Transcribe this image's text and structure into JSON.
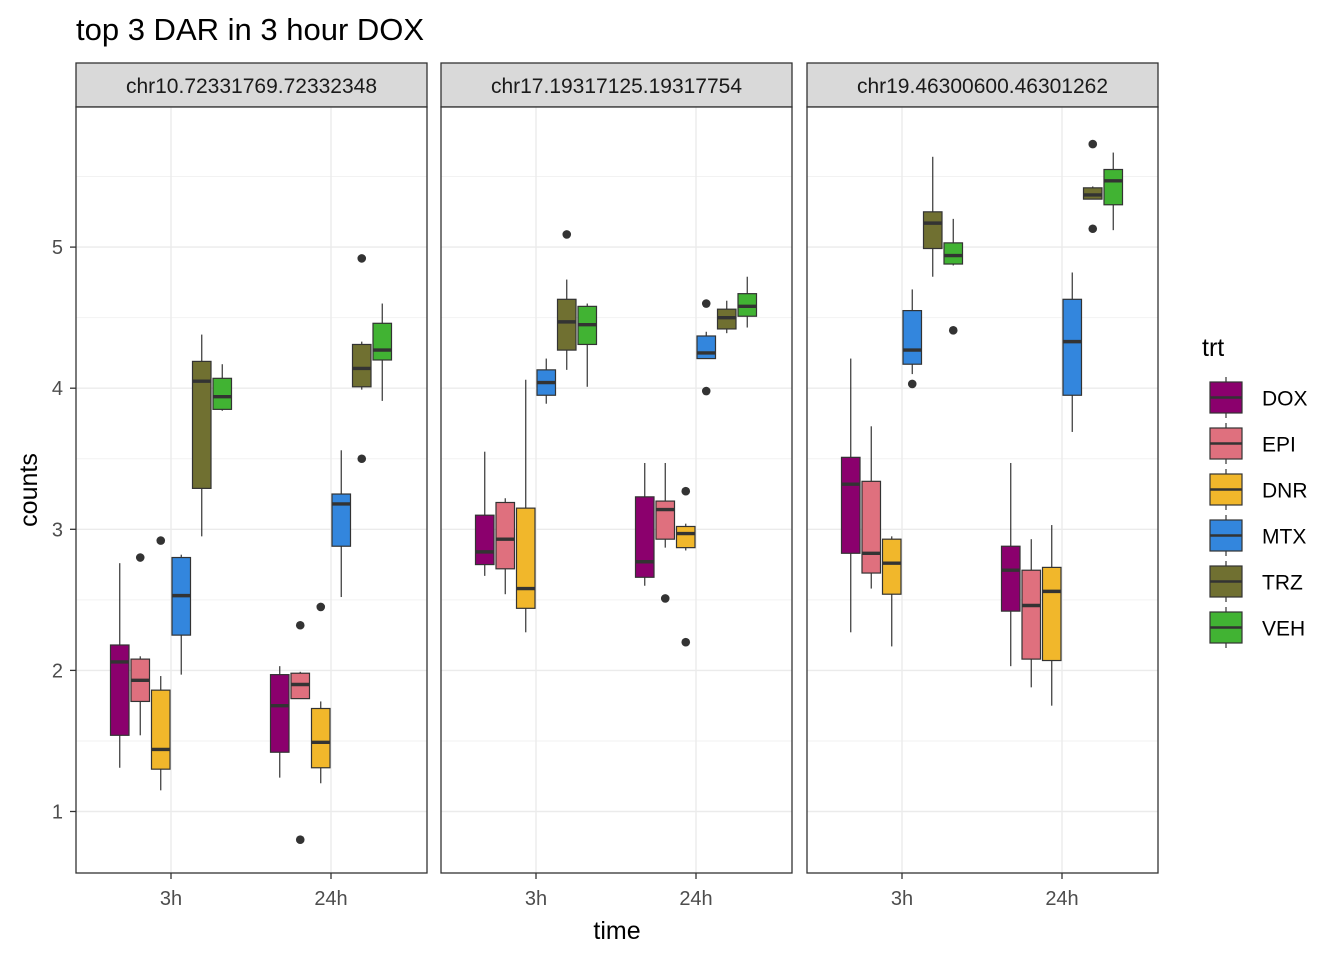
{
  "chart_data": {
    "type": "boxplot",
    "title": "top 3 DAR in 3 hour DOX",
    "xlabel": "time",
    "ylabel": "counts",
    "x_categories": [
      "3h",
      "24h"
    ],
    "y_ticks": [
      1,
      2,
      3,
      4,
      5
    ],
    "ylim": [
      0.55,
      6.0
    ],
    "grid": true,
    "legend": {
      "title": "trt",
      "placement": "right",
      "entries": [
        {
          "name": "DOX",
          "color": "#8B006D"
        },
        {
          "name": "EPI",
          "color": "#DF707E"
        },
        {
          "name": "DNR",
          "color": "#F1B72B"
        },
        {
          "name": "MTX",
          "color": "#3386DD"
        },
        {
          "name": "TRZ",
          "color": "#707031"
        },
        {
          "name": "VEH",
          "color": "#41B333"
        }
      ]
    },
    "panels": [
      {
        "label": "chr10.72331769.72332348",
        "groups": [
          {
            "time": "3h",
            "boxes": [
              {
                "trt": "DOX",
                "min": 1.31,
                "q1": 1.54,
                "median": 2.06,
                "q3": 2.18,
                "max": 2.76,
                "outliers": []
              },
              {
                "trt": "EPI",
                "min": 1.54,
                "q1": 1.78,
                "median": 1.93,
                "q3": 2.08,
                "max": 2.1,
                "outliers": [
                  2.8
                ]
              },
              {
                "trt": "DNR",
                "min": 1.15,
                "q1": 1.3,
                "median": 1.44,
                "q3": 1.86,
                "max": 1.96,
                "outliers": [
                  2.92
                ]
              },
              {
                "trt": "MTX",
                "min": 1.97,
                "q1": 2.25,
                "median": 2.53,
                "q3": 2.8,
                "max": 2.82,
                "outliers": []
              },
              {
                "trt": "TRZ",
                "min": 2.95,
                "q1": 3.29,
                "median": 4.05,
                "q3": 4.19,
                "max": 4.38,
                "outliers": []
              },
              {
                "trt": "VEH",
                "min": 3.84,
                "q1": 3.85,
                "median": 3.94,
                "q3": 4.07,
                "max": 4.17,
                "outliers": []
              }
            ]
          },
          {
            "time": "24h",
            "boxes": [
              {
                "trt": "DOX",
                "min": 1.24,
                "q1": 1.42,
                "median": 1.75,
                "q3": 1.97,
                "max": 2.03,
                "outliers": []
              },
              {
                "trt": "EPI",
                "min": 1.8,
                "q1": 1.8,
                "median": 1.9,
                "q3": 1.98,
                "max": 1.99,
                "outliers": [
                  2.32,
                  0.8
                ]
              },
              {
                "trt": "DNR",
                "min": 1.2,
                "q1": 1.31,
                "median": 1.49,
                "q3": 1.73,
                "max": 1.78,
                "outliers": [
                  2.45
                ]
              },
              {
                "trt": "MTX",
                "min": 2.52,
                "q1": 2.88,
                "median": 3.18,
                "q3": 3.25,
                "max": 3.56,
                "outliers": []
              },
              {
                "trt": "TRZ",
                "min": 3.99,
                "q1": 4.01,
                "median": 4.14,
                "q3": 4.31,
                "max": 4.33,
                "outliers": [
                  4.92,
                  3.5
                ]
              },
              {
                "trt": "VEH",
                "min": 3.91,
                "q1": 4.2,
                "median": 4.27,
                "q3": 4.46,
                "max": 4.6,
                "outliers": []
              }
            ]
          }
        ]
      },
      {
        "label": "chr17.19317125.19317754",
        "groups": [
          {
            "time": "3h",
            "boxes": [
              {
                "trt": "DOX",
                "min": 2.67,
                "q1": 2.75,
                "median": 2.84,
                "q3": 3.1,
                "max": 3.55,
                "outliers": []
              },
              {
                "trt": "EPI",
                "min": 2.54,
                "q1": 2.72,
                "median": 2.93,
                "q3": 3.19,
                "max": 3.22,
                "outliers": []
              },
              {
                "trt": "DNR",
                "min": 2.27,
                "q1": 2.44,
                "median": 2.58,
                "q3": 3.15,
                "max": 4.06,
                "outliers": []
              },
              {
                "trt": "MTX",
                "min": 3.89,
                "q1": 3.95,
                "median": 4.04,
                "q3": 4.13,
                "max": 4.21,
                "outliers": []
              },
              {
                "trt": "TRZ",
                "min": 4.13,
                "q1": 4.27,
                "median": 4.47,
                "q3": 4.63,
                "max": 4.77,
                "outliers": [
                  5.09
                ]
              },
              {
                "trt": "VEH",
                "min": 4.01,
                "q1": 4.31,
                "median": 4.45,
                "q3": 4.58,
                "max": 4.6,
                "outliers": []
              }
            ]
          },
          {
            "time": "24h",
            "boxes": [
              {
                "trt": "DOX",
                "min": 2.6,
                "q1": 2.66,
                "median": 2.77,
                "q3": 3.23,
                "max": 3.47,
                "outliers": []
              },
              {
                "trt": "EPI",
                "min": 2.87,
                "q1": 2.93,
                "median": 3.14,
                "q3": 3.2,
                "max": 3.47,
                "outliers": [
                  2.51
                ]
              },
              {
                "trt": "DNR",
                "min": 2.85,
                "q1": 2.87,
                "median": 2.97,
                "q3": 3.02,
                "max": 3.04,
                "outliers": [
                  3.27,
                  2.2
                ]
              },
              {
                "trt": "MTX",
                "min": 4.21,
                "q1": 4.21,
                "median": 4.25,
                "q3": 4.37,
                "max": 4.4,
                "outliers": [
                  4.6,
                  3.98
                ]
              },
              {
                "trt": "TRZ",
                "min": 4.39,
                "q1": 4.42,
                "median": 4.5,
                "q3": 4.56,
                "max": 4.62,
                "outliers": []
              },
              {
                "trt": "VEH",
                "min": 4.43,
                "q1": 4.51,
                "median": 4.58,
                "q3": 4.67,
                "max": 4.79,
                "outliers": []
              }
            ]
          }
        ]
      },
      {
        "label": "chr19.46300600.46301262",
        "groups": [
          {
            "time": "3h",
            "boxes": [
              {
                "trt": "DOX",
                "min": 2.27,
                "q1": 2.83,
                "median": 3.32,
                "q3": 3.51,
                "max": 4.21,
                "outliers": []
              },
              {
                "trt": "EPI",
                "min": 2.58,
                "q1": 2.69,
                "median": 2.83,
                "q3": 3.34,
                "max": 3.73,
                "outliers": []
              },
              {
                "trt": "DNR",
                "min": 2.17,
                "q1": 2.54,
                "median": 2.76,
                "q3": 2.93,
                "max": 2.95,
                "outliers": []
              },
              {
                "trt": "MTX",
                "min": 4.1,
                "q1": 4.17,
                "median": 4.27,
                "q3": 4.55,
                "max": 4.7,
                "outliers": [
                  4.03
                ]
              },
              {
                "trt": "TRZ",
                "min": 4.79,
                "q1": 4.99,
                "median": 5.17,
                "q3": 5.25,
                "max": 5.64,
                "outliers": []
              },
              {
                "trt": "VEH",
                "min": 4.87,
                "q1": 4.88,
                "median": 4.94,
                "q3": 5.03,
                "max": 5.2,
                "outliers": [
                  4.41
                ]
              }
            ]
          },
          {
            "time": "24h",
            "boxes": [
              {
                "trt": "DOX",
                "min": 2.03,
                "q1": 2.42,
                "median": 2.71,
                "q3": 2.88,
                "max": 3.47,
                "outliers": []
              },
              {
                "trt": "EPI",
                "min": 1.88,
                "q1": 2.08,
                "median": 2.46,
                "q3": 2.71,
                "max": 2.93,
                "outliers": []
              },
              {
                "trt": "DNR",
                "min": 1.75,
                "q1": 2.07,
                "median": 2.56,
                "q3": 2.73,
                "max": 3.03,
                "outliers": []
              },
              {
                "trt": "MTX",
                "min": 3.69,
                "q1": 3.95,
                "median": 4.33,
                "q3": 4.63,
                "max": 4.82,
                "outliers": []
              },
              {
                "trt": "TRZ",
                "min": 5.34,
                "q1": 5.34,
                "median": 5.37,
                "q3": 5.42,
                "max": 5.43,
                "outliers": [
                  5.73,
                  5.13
                ]
              },
              {
                "trt": "VEH",
                "min": 5.12,
                "q1": 5.3,
                "median": 5.47,
                "q3": 5.55,
                "max": 5.67,
                "outliers": []
              }
            ]
          }
        ]
      }
    ]
  }
}
